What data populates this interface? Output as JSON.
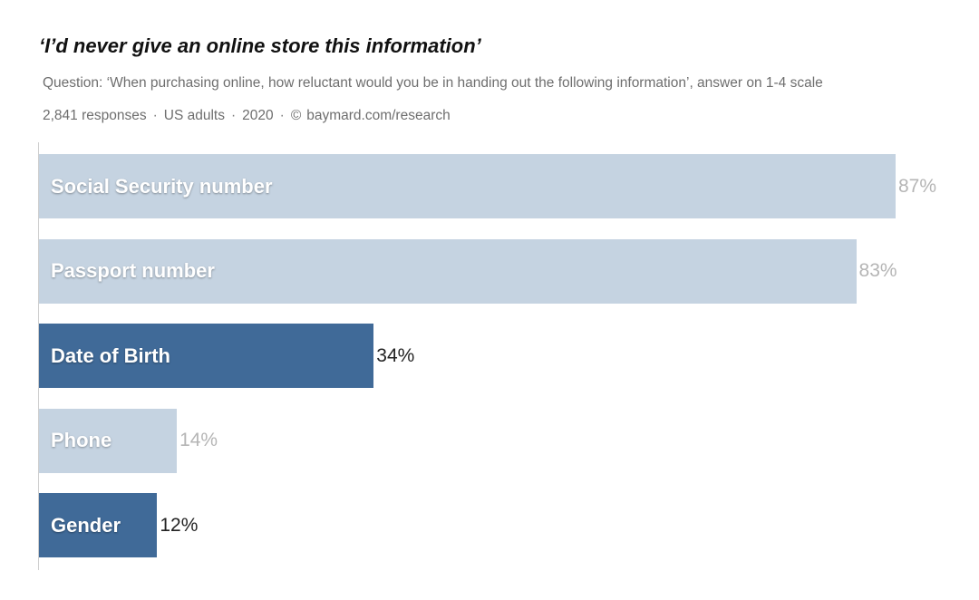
{
  "header": {
    "title": "‘I’d never give an online store this information’",
    "subtitle": "Question: ‘When purchasing online, how reluctant would you be in handing out the following information’, answer on 1-4 scale",
    "meta": {
      "responses": "2,841 responses",
      "population": "US adults",
      "year": "2020",
      "copyright_symbol": "©",
      "source": "baymard.com/research",
      "separator": "·"
    }
  },
  "chart_data": {
    "type": "bar",
    "orientation": "horizontal",
    "categories": [
      "Social Security number",
      "Passport number",
      "Date of Birth",
      "Phone",
      "Gender"
    ],
    "values": [
      87,
      83,
      34,
      14,
      12
    ],
    "value_labels": [
      "87%",
      "83%",
      "34%",
      "14%",
      "12%"
    ],
    "highlighted": [
      false,
      false,
      true,
      false,
      true
    ],
    "xlim": [
      0,
      100
    ],
    "grid": false,
    "colors": {
      "highlight_bar": "#406a98",
      "muted_bar": "#c5d3e1",
      "highlight_value_text": "#222222",
      "muted_value_text": "#b5b5b5"
    }
  }
}
